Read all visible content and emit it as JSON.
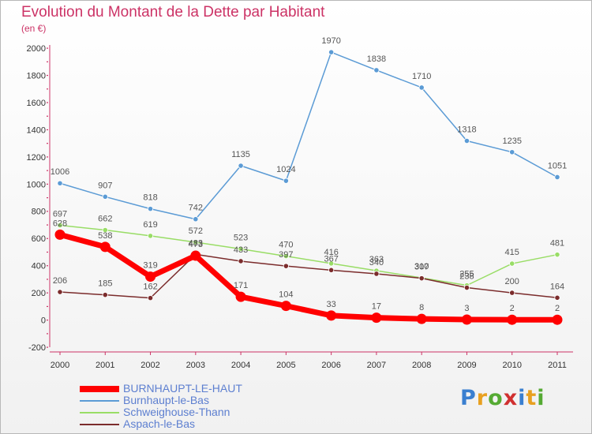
{
  "title": "Evolution du Montant de la Dette par Habitant",
  "subtitle": "(en €)",
  "logo": {
    "text": "Proxiti",
    "letters": [
      {
        "ch": "P",
        "color": "#3a7fd0"
      },
      {
        "ch": "r",
        "color": "#e8a020"
      },
      {
        "ch": "o",
        "color": "#55aa33"
      },
      {
        "ch": "x",
        "color": "#d03030"
      },
      {
        "ch": "i",
        "color": "#3a7fd0"
      },
      {
        "ch": "t",
        "color": "#e8a020"
      },
      {
        "ch": "i",
        "color": "#55aa33"
      }
    ]
  },
  "chart_data": {
    "type": "line",
    "title": "Evolution du Montant de la Dette par Habitant",
    "subtitle": "(en €)",
    "x": [
      "2000",
      "2001",
      "2002",
      "2003",
      "2004",
      "2005",
      "2006",
      "2007",
      "2008",
      "2009",
      "2010",
      "2011"
    ],
    "ylim": [
      -200,
      2000
    ],
    "yticks": [
      -200,
      0,
      200,
      400,
      600,
      800,
      1000,
      1200,
      1400,
      1600,
      1800,
      2000
    ],
    "grid": false,
    "legend_position": "bottom-left",
    "series": [
      {
        "name": "BURNHAUPT-LE-HAUT",
        "color": "#ff0000",
        "values": [
          628,
          538,
          319,
          473,
          171,
          104,
          33,
          17,
          8,
          3,
          2,
          2
        ],
        "labels": [
          "628",
          "538",
          "319",
          "473",
          "171",
          "104",
          "33",
          "17",
          "8",
          "3",
          "2",
          "2"
        ]
      },
      {
        "name": "Burnhaupt-le-Bas",
        "color": "#5b9bd5",
        "values": [
          1006,
          907,
          818,
          742,
          1135,
          1024,
          1970,
          1838,
          1710,
          1318,
          1235,
          1051
        ],
        "labels": [
          "1006",
          "907",
          "818",
          "742",
          "1135",
          "1024",
          "1970",
          "1838",
          "1710",
          "1318",
          "1235",
          "1051"
        ]
      },
      {
        "name": "Schweighouse-Thann",
        "color": "#99dd66",
        "values": [
          697,
          662,
          619,
          572,
          523,
          470,
          416,
          363,
          310,
          255,
          415,
          481
        ],
        "labels": [
          "697",
          "662",
          "619",
          "572",
          "523",
          "470",
          "416",
          "363",
          "310",
          "255",
          "415",
          "481"
        ]
      },
      {
        "name": "Aspach-le-Bas",
        "color": "#7b2c2c",
        "values": [
          206,
          185,
          162,
          483,
          433,
          397,
          367,
          340,
          307,
          238,
          200,
          164
        ],
        "labels": [
          "206",
          "185",
          "162",
          "483",
          "433",
          "397",
          "367",
          "340",
          "307",
          "238",
          "200",
          "164"
        ]
      }
    ]
  }
}
